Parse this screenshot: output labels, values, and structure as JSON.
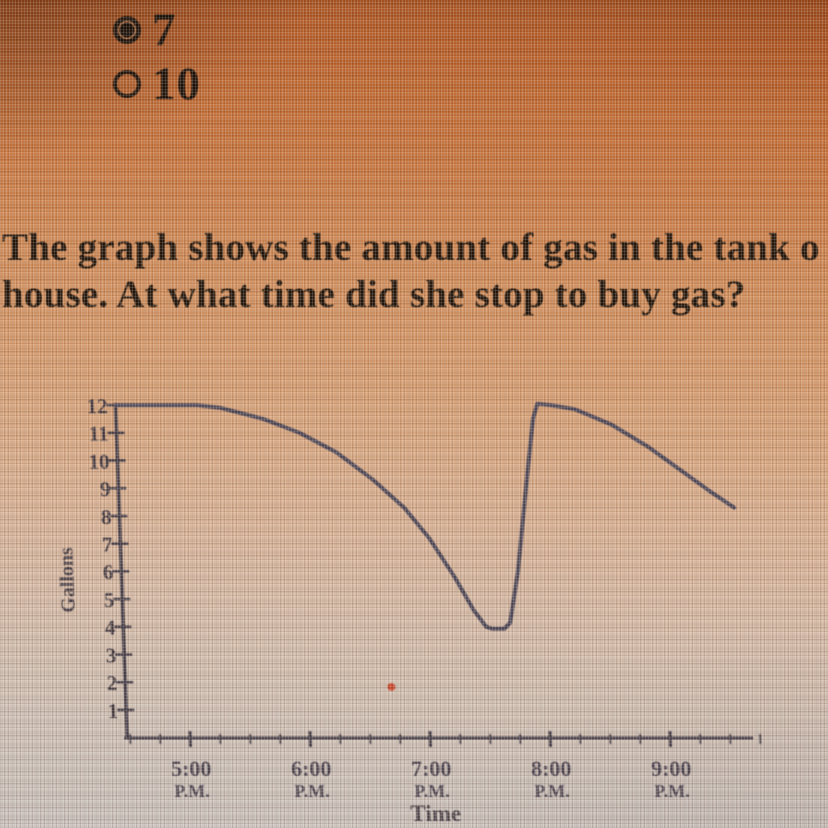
{
  "question": {
    "options": [
      {
        "label": "7",
        "selected": true
      },
      {
        "label": "10",
        "selected": false
      }
    ],
    "prompt_line1": "The graph shows the amount of gas in the tank o",
    "prompt_line2": "house. At what time did she stop to buy gas?"
  },
  "chart_data": {
    "type": "line",
    "title": "",
    "xlabel": "Time",
    "ylabel": "Gallons",
    "ylim": [
      0,
      12
    ],
    "y_ticks": [
      1,
      2,
      3,
      4,
      5,
      6,
      7,
      8,
      9,
      10,
      11,
      12
    ],
    "x_ticks": [
      {
        "hour": 5,
        "label": "5:00",
        "meridiem": "P.M."
      },
      {
        "hour": 6,
        "label": "6:00",
        "meridiem": "P.M."
      },
      {
        "hour": 7,
        "label": "7:00",
        "meridiem": "P.M."
      },
      {
        "hour": 8,
        "label": "8:00",
        "meridiem": "P.M."
      },
      {
        "hour": 9,
        "label": "9:00",
        "meridiem": "P.M."
      }
    ],
    "x_minor_tick_interval_hours": 0.25,
    "grid": false,
    "legend": false,
    "series": [
      {
        "name": "gas-in-tank",
        "points": [
          {
            "t": 4.48,
            "g": 12.0
          },
          {
            "t": 5.15,
            "g": 12.0
          },
          {
            "t": 5.35,
            "g": 11.9
          },
          {
            "t": 5.7,
            "g": 11.5
          },
          {
            "t": 6.0,
            "g": 11.0
          },
          {
            "t": 6.3,
            "g": 10.3
          },
          {
            "t": 6.6,
            "g": 9.3
          },
          {
            "t": 6.85,
            "g": 8.3
          },
          {
            "t": 7.05,
            "g": 7.2
          },
          {
            "t": 7.25,
            "g": 5.8
          },
          {
            "t": 7.4,
            "g": 4.6
          },
          {
            "t": 7.5,
            "g": 4.0
          },
          {
            "t": 7.55,
            "g": 3.93
          },
          {
            "t": 7.65,
            "g": 3.93
          },
          {
            "t": 7.7,
            "g": 4.15
          },
          {
            "t": 7.78,
            "g": 6.0
          },
          {
            "t": 7.88,
            "g": 9.3
          },
          {
            "t": 7.95,
            "g": 11.5
          },
          {
            "t": 7.99,
            "g": 12.05
          },
          {
            "t": 8.1,
            "g": 12.0
          },
          {
            "t": 8.3,
            "g": 11.85
          },
          {
            "t": 8.6,
            "g": 11.3
          },
          {
            "t": 8.9,
            "g": 10.5
          },
          {
            "t": 9.15,
            "g": 9.7
          },
          {
            "t": 9.4,
            "g": 8.9
          },
          {
            "t": 9.6,
            "g": 8.3
          }
        ]
      }
    ],
    "colors": {
      "line": "#4e4858",
      "axis": "#453e48",
      "text": "#41383f",
      "artifact": "#cc3a1c"
    }
  }
}
